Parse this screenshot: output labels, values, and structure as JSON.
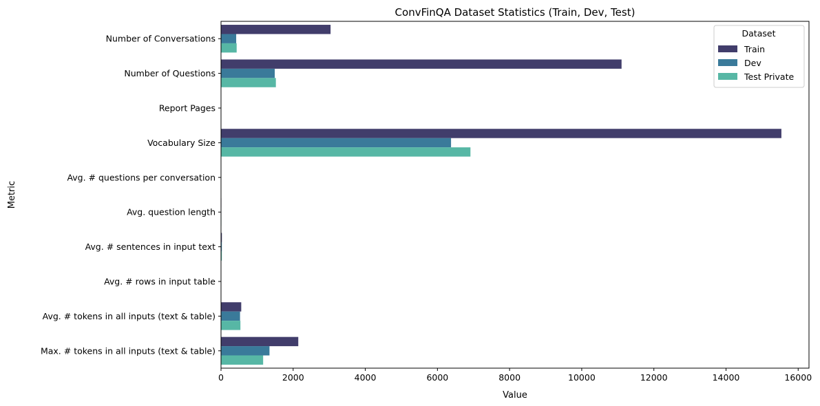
{
  "chart_data": {
    "type": "bar",
    "orientation": "horizontal",
    "title": "ConvFinQA Dataset Statistics (Train, Dev, Test)",
    "xlabel": "Value",
    "ylabel": "Metric",
    "xlim": [
      0,
      16300
    ],
    "xticks": [
      0,
      2000,
      4000,
      6000,
      8000,
      10000,
      12000,
      14000,
      16000
    ],
    "grid": false,
    "legend": {
      "title": "Dataset",
      "placement": "top-right"
    },
    "categories": [
      "Number of Conversations",
      "Number of Questions",
      "Report Pages",
      "Vocabulary Size",
      "Avg. # questions per conversation",
      "Avg. question length",
      "Avg. # sentences in input text",
      "Avg. # rows in input table",
      "Avg. # tokens in all inputs (text & table)",
      "Max. # tokens in all inputs (text & table)"
    ],
    "series": [
      {
        "name": "Train",
        "color": "#413d6b",
        "values": [
          3037,
          11104,
          1.67,
          15535,
          3.65,
          10.59,
          24.32,
          6.04,
          560.8,
          2142
        ]
      },
      {
        "name": "Dev",
        "color": "#3a7a9a",
        "values": [
          421,
          1490,
          1.68,
          6377,
          3.54,
          10.24,
          23.56,
          5.99,
          527.5,
          1344
        ]
      },
      {
        "name": "Test Private",
        "color": "#57b7a5",
        "values": [
          434,
          1521,
          1.64,
          6915,
          3.5,
          10.67,
          23.69,
          6.22,
          538.0,
          1168
        ]
      }
    ]
  }
}
